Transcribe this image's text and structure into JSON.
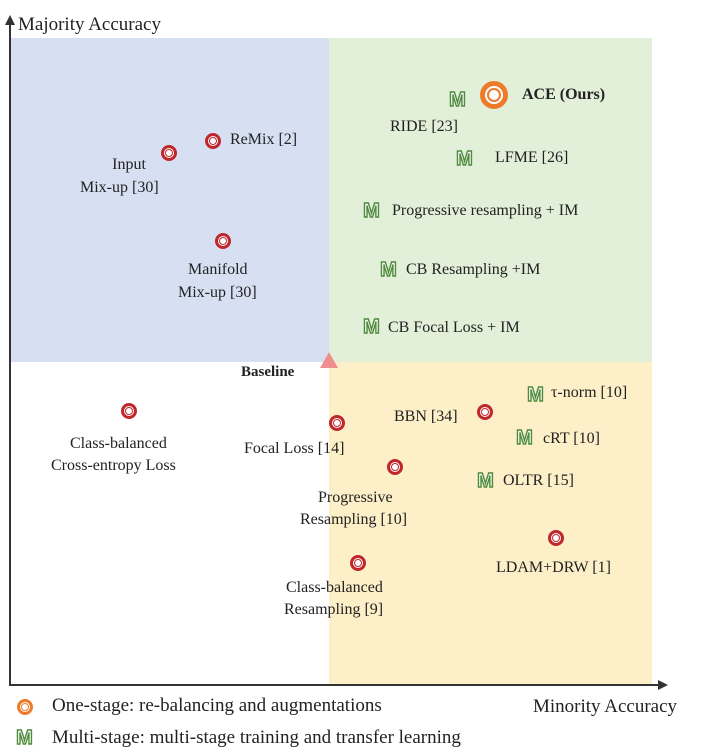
{
  "axes": {
    "y_label": "Majority Accuracy",
    "x_label": "Minority Accuracy"
  },
  "baseline_label": "Baseline",
  "methods": {
    "ace": "ACE (Ours)",
    "ride": "RIDE [23]",
    "lfme": "LFME [26]",
    "progressive_resampling_im": "Progressive resampling  + IM",
    "cb_resampling_im": "CB Resampling  +IM",
    "cb_focal_im": "CB Focal Loss + IM",
    "remix": "ReMix [2]",
    "input_mixup_1": "Input",
    "input_mixup_2": "Mix-up [30]",
    "manifold_mixup_1": "Manifold",
    "manifold_mixup_2": "Mix-up [30]",
    "cb_ce_1": "Class-balanced",
    "cb_ce_2": "Cross-entropy Loss",
    "focal_loss": "Focal Loss [14]",
    "bbn": "BBN [34]",
    "tau_norm": "τ-norm [10]",
    "crt": "cRT [10]",
    "oltr": "OLTR [15]",
    "prog_resampling_1": "Progressive",
    "prog_resampling_2": "Resampling  [10]",
    "ldam": "LDAM+DRW [1]",
    "cb_resampling_1": "Class-balanced",
    "cb_resampling_2": "Resampling  [9]"
  },
  "legend": {
    "one_stage": "One-stage: re-balancing and augmentations",
    "multi_stage": "Multi-stage: multi-stage training and transfer learning"
  },
  "marker_glyph_m": "M",
  "colors": {
    "quadrant_top_left": "#d7e0f3",
    "quadrant_top_right": "#e2efd9",
    "quadrant_bottom_right": "#fdefc7",
    "one_stage_marker": "#c0272d",
    "ace_marker": "#ee7b2c",
    "multi_stage_marker": "#4f8b3c",
    "baseline_marker": "#f08e8e"
  }
}
